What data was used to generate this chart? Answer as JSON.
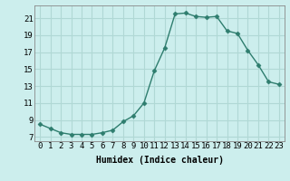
{
  "x": [
    0,
    1,
    2,
    3,
    4,
    5,
    6,
    7,
    8,
    9,
    10,
    11,
    12,
    13,
    14,
    15,
    16,
    17,
    18,
    19,
    20,
    21,
    22,
    23
  ],
  "y": [
    8.5,
    8.0,
    7.5,
    7.3,
    7.3,
    7.3,
    7.5,
    7.8,
    8.8,
    9.5,
    11.0,
    14.8,
    17.5,
    21.5,
    21.6,
    21.2,
    21.1,
    21.2,
    19.5,
    19.2,
    17.2,
    15.5,
    13.5,
    13.2
  ],
  "line_color": "#2e7d6e",
  "marker": "D",
  "marker_size": 2.5,
  "bg_color": "#cceeed",
  "grid_color": "#b0d8d5",
  "xlabel": "Humidex (Indice chaleur)",
  "xlim": [
    -0.5,
    23.5
  ],
  "ylim": [
    6.5,
    22.5
  ],
  "yticks": [
    7,
    9,
    11,
    13,
    15,
    17,
    19,
    21
  ],
  "xticks": [
    0,
    1,
    2,
    3,
    4,
    5,
    6,
    7,
    8,
    9,
    10,
    11,
    12,
    13,
    14,
    15,
    16,
    17,
    18,
    19,
    20,
    21,
    22,
    23
  ],
  "xtick_labels": [
    "0",
    "1",
    "2",
    "3",
    "4",
    "5",
    "6",
    "7",
    "8",
    "9",
    "10",
    "11",
    "12",
    "13",
    "14",
    "15",
    "16",
    "17",
    "18",
    "19",
    "20",
    "21",
    "22",
    "23"
  ],
  "line_width": 1.0,
  "font_size": 6.5,
  "xlabel_fontsize": 7,
  "spine_color": "#888888"
}
